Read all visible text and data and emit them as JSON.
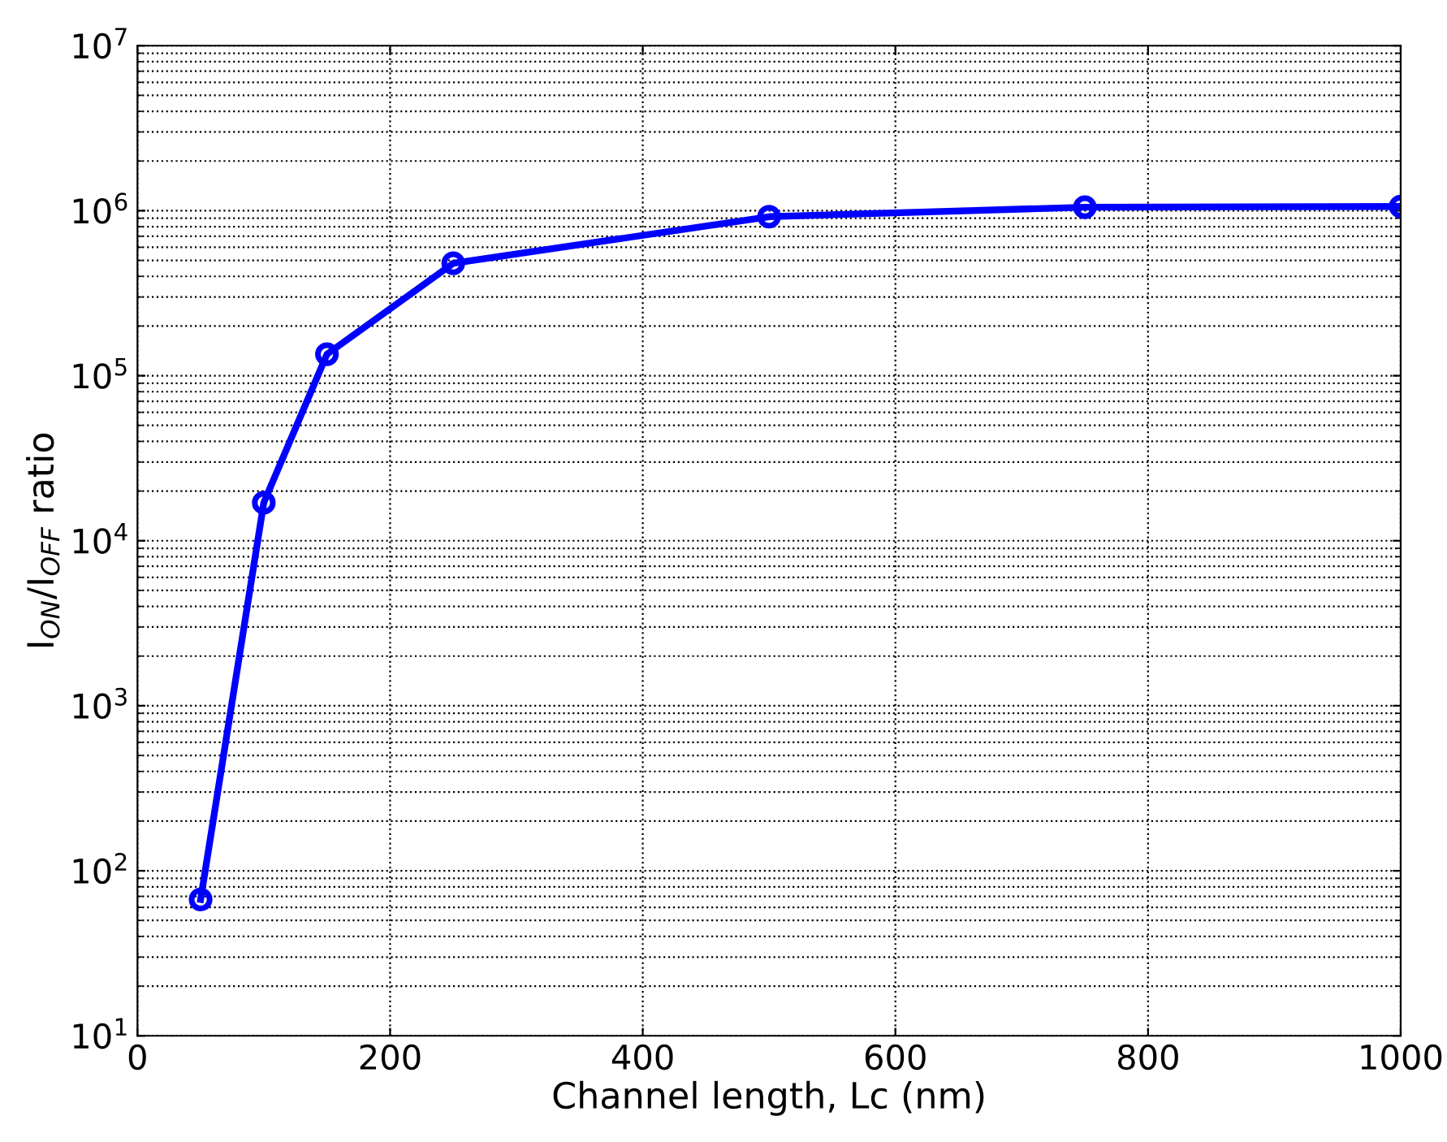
{
  "chart_data": {
    "type": "line",
    "xlabel": "Channel length, Lc (nm)",
    "ylabel": "I$_{ON}$/I$_{OFF}$ ratio",
    "x": [
      50,
      100,
      150,
      250,
      500,
      750,
      1000
    ],
    "series": [
      {
        "color": "#0000ff",
        "values": [
          67,
          17000,
          135000,
          480000,
          920000,
          1050000,
          1060000
        ]
      }
    ],
    "xlim": [
      0,
      1000
    ],
    "xticks": [
      0,
      200,
      400,
      600,
      800,
      1000
    ],
    "ylim": [
      10,
      10000000
    ],
    "yticks": [
      {
        "value": 10,
        "label": "10$^{1}$"
      },
      {
        "value": 100,
        "label": "10$^{2}$"
      },
      {
        "value": 1000,
        "label": "10$^{3}$"
      },
      {
        "value": 10000,
        "label": "10$^{4}$"
      },
      {
        "value": 100000,
        "label": "10$^{5}$"
      },
      {
        "value": 1000000,
        "label": "10$^{6}$"
      },
      {
        "value": 10000000,
        "label": "10$^{7}$"
      }
    ],
    "log": "y",
    "grid": true,
    "marker": "circle",
    "line_style": "solid"
  }
}
